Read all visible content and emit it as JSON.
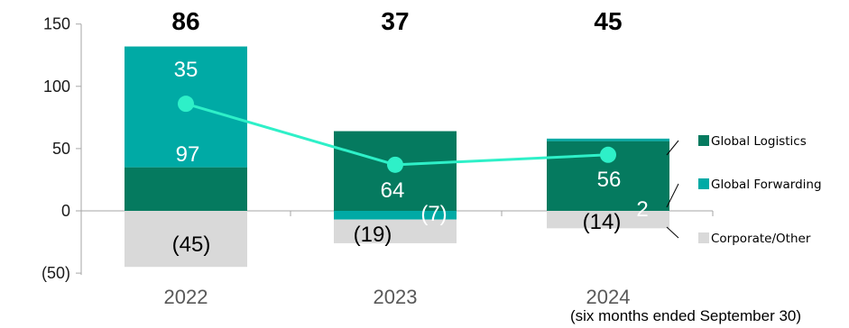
{
  "chart_data": {
    "type": "bar",
    "categories": [
      "2022",
      "2023",
      "2024"
    ],
    "x_note": "(six months ended September 30)",
    "y_ticks": [
      "150",
      "100",
      "50",
      "0",
      "(50)"
    ],
    "ylim": [
      -50,
      150
    ],
    "colors": {
      "global_logistics": "#057a5f",
      "global_forwarding": "#00aaa5",
      "corporate_other": "#d9d9d9",
      "total_line": "#2ef0c8"
    },
    "series": [
      {
        "name": "Global Logistics",
        "key": "global_logistics",
        "values": [
          35,
          64,
          56
        ],
        "labels": [
          "35",
          "64",
          "56"
        ]
      },
      {
        "name": "Global Forwarding",
        "key": "global_forwarding",
        "values": [
          97,
          -7,
          2
        ],
        "labels": [
          "97",
          "(7)",
          "2"
        ]
      },
      {
        "name": "Corporate/Other",
        "key": "corporate_other",
        "values": [
          -45,
          -19,
          -14
        ],
        "labels": [
          "(45)",
          "(19)",
          "(14)"
        ]
      }
    ],
    "totals": {
      "values": [
        86,
        37,
        45
      ],
      "labels": [
        "86",
        "37",
        "45"
      ]
    },
    "legend": {
      "position": "right",
      "items": [
        "Global Logistics",
        "Global Forwarding",
        "Corporate/Other"
      ]
    },
    "grid": false
  }
}
